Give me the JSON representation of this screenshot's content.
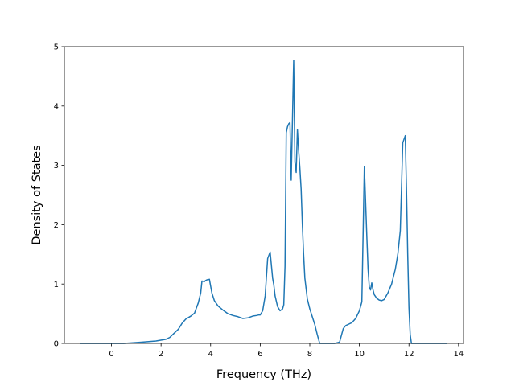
{
  "chart_data": {
    "type": "line",
    "xlabel": "Frequency (THz)",
    "ylabel": "Density of States",
    "xlim": [
      -1.9,
      14.2
    ],
    "ylim": [
      0,
      5
    ],
    "xticks": [
      0,
      2,
      4,
      6,
      8,
      10,
      12,
      14
    ],
    "yticks": [
      0,
      1,
      2,
      3,
      4,
      5
    ],
    "grid": false,
    "series": [
      {
        "color": "#1f77b4",
        "x": [
          -1.25,
          -0.5,
          0.5,
          1.2,
          1.8,
          2.2,
          2.35,
          2.5,
          2.7,
          2.85,
          3.0,
          3.2,
          3.35,
          3.5,
          3.6,
          3.65,
          3.75,
          3.8,
          3.85,
          3.95,
          4.05,
          4.15,
          4.3,
          4.5,
          4.7,
          4.9,
          5.1,
          5.3,
          5.5,
          5.7,
          5.85,
          5.95,
          6.0,
          6.1,
          6.2,
          6.3,
          6.4,
          6.5,
          6.55,
          6.6,
          6.7,
          6.8,
          6.9,
          6.95,
          7.0,
          7.05,
          7.1,
          7.15,
          7.2,
          7.25,
          7.35,
          7.4,
          7.45,
          7.5,
          7.55,
          7.6,
          7.65,
          7.7,
          7.75,
          7.8,
          7.9,
          8.0,
          8.1,
          8.2,
          8.3,
          8.4,
          8.5,
          8.6,
          9.0,
          9.2,
          9.35,
          9.45,
          9.55,
          9.7,
          9.85,
          10.0,
          10.1,
          10.2,
          10.3,
          10.35,
          10.4,
          10.45,
          10.5,
          10.55,
          10.6,
          10.7,
          10.8,
          10.9,
          11.0,
          11.15,
          11.3,
          11.45,
          11.55,
          11.65,
          11.75,
          11.85,
          11.9,
          11.95,
          12.0,
          12.05,
          12.1,
          12.15,
          12.2,
          12.25,
          12.4,
          13.5
        ],
        "y": [
          0.0,
          0.0,
          0.0,
          0.02,
          0.04,
          0.07,
          0.1,
          0.16,
          0.24,
          0.34,
          0.41,
          0.46,
          0.51,
          0.68,
          0.85,
          1.05,
          1.04,
          1.06,
          1.07,
          1.08,
          0.85,
          0.72,
          0.63,
          0.56,
          0.5,
          0.47,
          0.45,
          0.42,
          0.43,
          0.46,
          0.47,
          0.48,
          0.48,
          0.55,
          0.8,
          1.43,
          1.54,
          1.1,
          0.98,
          0.8,
          0.62,
          0.55,
          0.58,
          0.65,
          1.3,
          3.55,
          3.65,
          3.7,
          3.72,
          2.75,
          4.77,
          3.05,
          2.88,
          3.6,
          3.25,
          2.95,
          2.6,
          2.0,
          1.5,
          1.1,
          0.75,
          0.58,
          0.45,
          0.32,
          0.15,
          0.0,
          0.0,
          0.0,
          0.0,
          0.02,
          0.25,
          0.3,
          0.32,
          0.35,
          0.42,
          0.55,
          0.7,
          2.98,
          1.8,
          1.25,
          0.95,
          0.9,
          1.02,
          0.9,
          0.82,
          0.76,
          0.73,
          0.72,
          0.74,
          0.85,
          1.0,
          1.25,
          1.5,
          1.9,
          3.38,
          3.5,
          2.6,
          1.5,
          0.6,
          0.15,
          0.0,
          0.0,
          0.0,
          0.0,
          0.0,
          0.0
        ]
      }
    ]
  }
}
